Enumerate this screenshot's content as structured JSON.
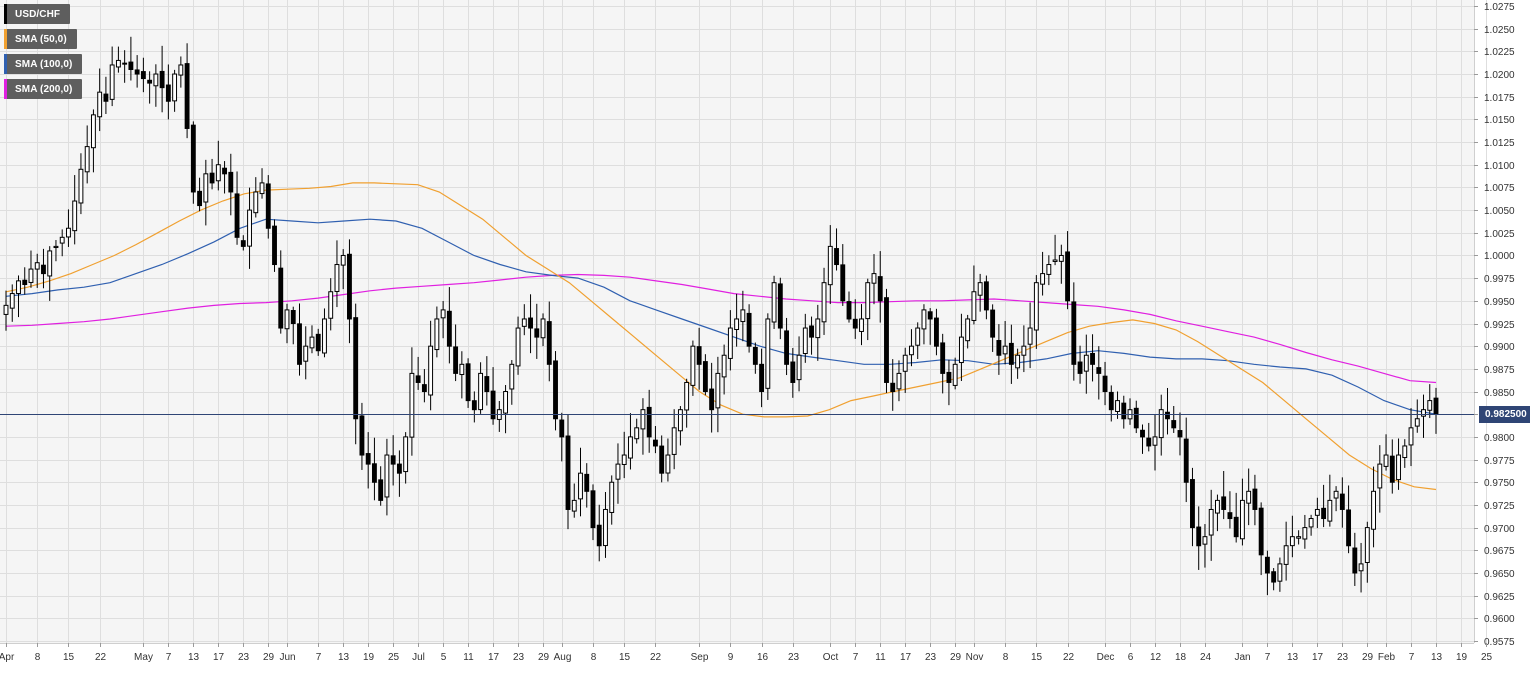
{
  "colors": {
    "background": "#f5f5f5",
    "grid": "#dedede",
    "candle": "#000000",
    "sma50": "#f0a030",
    "sma100": "#3060b0",
    "sma200": "#e020e0",
    "price_line": "#2f4575"
  },
  "legend": [
    {
      "label": "USD/CHF",
      "color": "#000000"
    },
    {
      "label": "SMA (50,0)",
      "color": "#f0a030"
    },
    {
      "label": "SMA (100,0)",
      "color": "#3060b0"
    },
    {
      "label": "SMA (200,0)",
      "color": "#e020e0"
    }
  ],
  "current_price_label": "0.982500",
  "chart_data": {
    "type": "candlestick",
    "symbol": "USD/CHF",
    "title": "",
    "xlabel": "",
    "ylabel": "",
    "ylim": [
      0.9575,
      1.0275
    ],
    "grid": true,
    "legend_placement": "top-left",
    "y_ticks": [
      "1.0275",
      "1.0250",
      "1.0225",
      "1.0200",
      "1.0175",
      "1.0150",
      "1.0125",
      "1.0100",
      "1.0075",
      "1.0050",
      "1.0025",
      "1.0000",
      "0.9975",
      "0.9950",
      "0.9925",
      "0.9900",
      "0.9875",
      "0.9850",
      "0.9825",
      "0.9800",
      "0.9775",
      "0.9750",
      "0.9725",
      "0.9700",
      "0.9675",
      "0.9650",
      "0.9625",
      "0.9600",
      "0.9575"
    ],
    "x_ticks": [
      {
        "label": "Apr",
        "i": 0
      },
      {
        "label": "8",
        "i": 5
      },
      {
        "label": "15",
        "i": 10
      },
      {
        "label": "22",
        "i": 15
      },
      {
        "label": "May",
        "i": 22
      },
      {
        "label": "7",
        "i": 26
      },
      {
        "label": "13",
        "i": 30
      },
      {
        "label": "17",
        "i": 34
      },
      {
        "label": "23",
        "i": 38
      },
      {
        "label": "29",
        "i": 42
      },
      {
        "label": "Jun",
        "i": 45
      },
      {
        "label": "7",
        "i": 50
      },
      {
        "label": "13",
        "i": 54
      },
      {
        "label": "19",
        "i": 58
      },
      {
        "label": "25",
        "i": 62
      },
      {
        "label": "Jul",
        "i": 66
      },
      {
        "label": "5",
        "i": 70
      },
      {
        "label": "11",
        "i": 74
      },
      {
        "label": "17",
        "i": 78
      },
      {
        "label": "23",
        "i": 82
      },
      {
        "label": "29",
        "i": 86
      },
      {
        "label": "Aug",
        "i": 89
      },
      {
        "label": "8",
        "i": 94
      },
      {
        "label": "15",
        "i": 99
      },
      {
        "label": "22",
        "i": 104
      },
      {
        "label": "Sep",
        "i": 111
      },
      {
        "label": "9",
        "i": 116
      },
      {
        "label": "16",
        "i": 121
      },
      {
        "label": "23",
        "i": 126
      },
      {
        "label": "Oct",
        "i": 132
      },
      {
        "label": "7",
        "i": 136
      },
      {
        "label": "11",
        "i": 140
      },
      {
        "label": "17",
        "i": 144
      },
      {
        "label": "23",
        "i": 148
      },
      {
        "label": "29",
        "i": 152
      },
      {
        "label": "Nov",
        "i": 155
      },
      {
        "label": "8",
        "i": 160
      },
      {
        "label": "15",
        "i": 165
      },
      {
        "label": "22",
        "i": 170
      },
      {
        "label": "Dec",
        "i": 176
      },
      {
        "label": "6",
        "i": 180
      },
      {
        "label": "12",
        "i": 184
      },
      {
        "label": "18",
        "i": 188
      },
      {
        "label": "24",
        "i": 192
      },
      {
        "label": "Jan",
        "i": 198
      },
      {
        "label": "7",
        "i": 202
      },
      {
        "label": "13",
        "i": 206
      },
      {
        "label": "17",
        "i": 210
      },
      {
        "label": "23",
        "i": 214
      },
      {
        "label": "29",
        "i": 218
      },
      {
        "label": "Feb",
        "i": 221
      },
      {
        "label": "7",
        "i": 225
      },
      {
        "label": "13",
        "i": 229
      },
      {
        "label": "19",
        "i": 233
      },
      {
        "label": "25",
        "i": 237
      }
    ],
    "close": [
      0.9945,
      0.9958,
      0.9972,
      0.9968,
      0.9985,
      0.9992,
      0.998,
      1.0005,
      1.001,
      1.002,
      1.003,
      1.006,
      1.0095,
      1.012,
      1.0155,
      1.018,
      1.017,
      1.021,
      1.0215,
      1.0212,
      1.0205,
      1.02,
      1.0195,
      1.019,
      1.02,
      1.0185,
      1.017,
      1.02,
      1.021,
      1.014,
      1.007,
      1.0055,
      1.009,
      1.008,
      1.01,
      1.009,
      1.007,
      1.002,
      1.001,
      1.005,
      1.007,
      1.008,
      1.003,
      0.999,
      0.992,
      0.994,
      0.9925,
      0.988,
      0.99,
      0.991,
      0.9895,
      0.993,
      0.996,
      0.999,
      1.0,
      0.993,
      0.982,
      0.978,
      0.977,
      0.975,
      0.973,
      0.978,
      0.977,
      0.976,
      0.98,
      0.987,
      0.986,
      0.985,
      0.99,
      0.993,
      0.994,
      0.99,
      0.987,
      0.988,
      0.984,
      0.983,
      0.987,
      0.985,
      0.982,
      0.983,
      0.985,
      0.988,
      0.992,
      0.993,
      0.992,
      0.991,
      0.993,
      0.988,
      0.982,
      0.98,
      0.972,
      0.973,
      0.976,
      0.974,
      0.97,
      0.968,
      0.972,
      0.975,
      0.977,
      0.978,
      0.98,
      0.981,
      0.983,
      0.98,
      0.979,
      0.976,
      0.978,
      0.981,
      0.983,
      0.986,
      0.99,
      0.988,
      0.985,
      0.983,
      0.987,
      0.989,
      0.992,
      0.993,
      0.994,
      0.99,
      0.988,
      0.985,
      0.993,
      0.997,
      0.992,
      0.988,
      0.986,
      0.989,
      0.992,
      0.991,
      0.993,
      0.997,
      1.001,
      0.999,
      0.995,
      0.993,
      0.992,
      0.993,
      0.997,
      0.998,
      0.995,
      0.986,
      0.985,
      0.987,
      0.989,
      0.99,
      0.992,
      0.994,
      0.993,
      0.99,
      0.987,
      0.986,
      0.988,
      0.991,
      0.993,
      0.996,
      0.997,
      0.994,
      0.991,
      0.989,
      0.99,
      0.988,
      0.989,
      0.99,
      0.992,
      0.997,
      0.998,
      0.999,
      0.9995,
      1.0,
      0.995,
      0.988,
      0.987,
      0.989,
      0.988,
      0.987,
      0.985,
      0.983,
      0.984,
      0.982,
      0.983,
      0.981,
      0.98,
      0.979,
      0.98,
      0.983,
      0.982,
      0.981,
      0.98,
      0.975,
      0.97,
      0.968,
      0.969,
      0.972,
      0.973,
      0.972,
      0.971,
      0.969,
      0.973,
      0.974,
      0.972,
      0.967,
      0.965,
      0.964,
      0.966,
      0.968,
      0.969,
      0.969,
      0.97,
      0.971,
      0.972,
      0.971,
      0.973,
      0.974,
      0.972,
      0.968,
      0.965,
      0.966,
      0.97,
      0.974,
      0.977,
      0.978,
      0.975,
      0.978,
      0.979,
      0.981,
      0.982,
      0.983,
      0.984,
      0.9825
    ],
    "sma50": {
      "start": 0,
      "values": [
        0.996,
        0.9965,
        0.9972,
        0.998,
        0.999,
        1.0,
        1.0012,
        1.0025,
        1.0038,
        1.005,
        1.006,
        1.0068,
        1.0072,
        1.0073,
        1.0074,
        1.0076,
        1.008,
        1.008,
        1.0079,
        1.0078,
        1.007,
        1.0055,
        1.004,
        1.002,
        1.0,
        0.9985,
        0.997,
        0.995,
        0.993,
        0.991,
        0.989,
        0.987,
        0.985,
        0.9835,
        0.9825,
        0.9822,
        0.9822,
        0.9823,
        0.983,
        0.984,
        0.9845,
        0.985,
        0.9855,
        0.986,
        0.9865,
        0.9875,
        0.9885,
        0.9895,
        0.9905,
        0.9915,
        0.9922,
        0.9926,
        0.9929,
        0.9925,
        0.9918,
        0.9905,
        0.989,
        0.9875,
        0.986,
        0.984,
        0.982,
        0.98,
        0.978,
        0.9765,
        0.9753,
        0.9745,
        0.9742
      ]
    },
    "sma100": {
      "start": 0,
      "values": [
        0.9955,
        0.9958,
        0.9962,
        0.9965,
        0.997,
        0.998,
        0.999,
        1.0002,
        1.0015,
        1.003,
        1.004,
        1.0038,
        1.0036,
        1.0038,
        1.004,
        1.0038,
        1.003,
        1.0015,
        1.0,
        0.999,
        0.9982,
        0.9978,
        0.9975,
        0.9965,
        0.995,
        0.994,
        0.993,
        0.992,
        0.991,
        0.99,
        0.9892,
        0.9888,
        0.9884,
        0.988,
        0.988,
        0.9882,
        0.9885,
        0.9884,
        0.988,
        0.9882,
        0.9886,
        0.9892,
        0.9895,
        0.9892,
        0.9888,
        0.9886,
        0.9886,
        0.9884,
        0.988,
        0.9877,
        0.9875,
        0.9868,
        0.9855,
        0.984,
        0.983,
        0.9825
      ]
    },
    "sma200": {
      "start": 0,
      "values": [
        0.9922,
        0.9923,
        0.9925,
        0.9927,
        0.993,
        0.9934,
        0.9938,
        0.9942,
        0.9945,
        0.9947,
        0.9948,
        0.995,
        0.9953,
        0.9957,
        0.9961,
        0.9964,
        0.9966,
        0.9968,
        0.997,
        0.9973,
        0.9976,
        0.9978,
        0.9979,
        0.9978,
        0.9976,
        0.9972,
        0.9968,
        0.9963,
        0.9958,
        0.9955,
        0.9952,
        0.995,
        0.9948,
        0.9948,
        0.9949,
        0.995,
        0.995,
        0.9951,
        0.9952,
        0.995,
        0.9948,
        0.9946,
        0.9944,
        0.994,
        0.9935,
        0.9928,
        0.9922,
        0.9916,
        0.991,
        0.9902,
        0.9893,
        0.9885,
        0.9878,
        0.987,
        0.9862,
        0.986
      ]
    },
    "current_price": 0.9825
  }
}
